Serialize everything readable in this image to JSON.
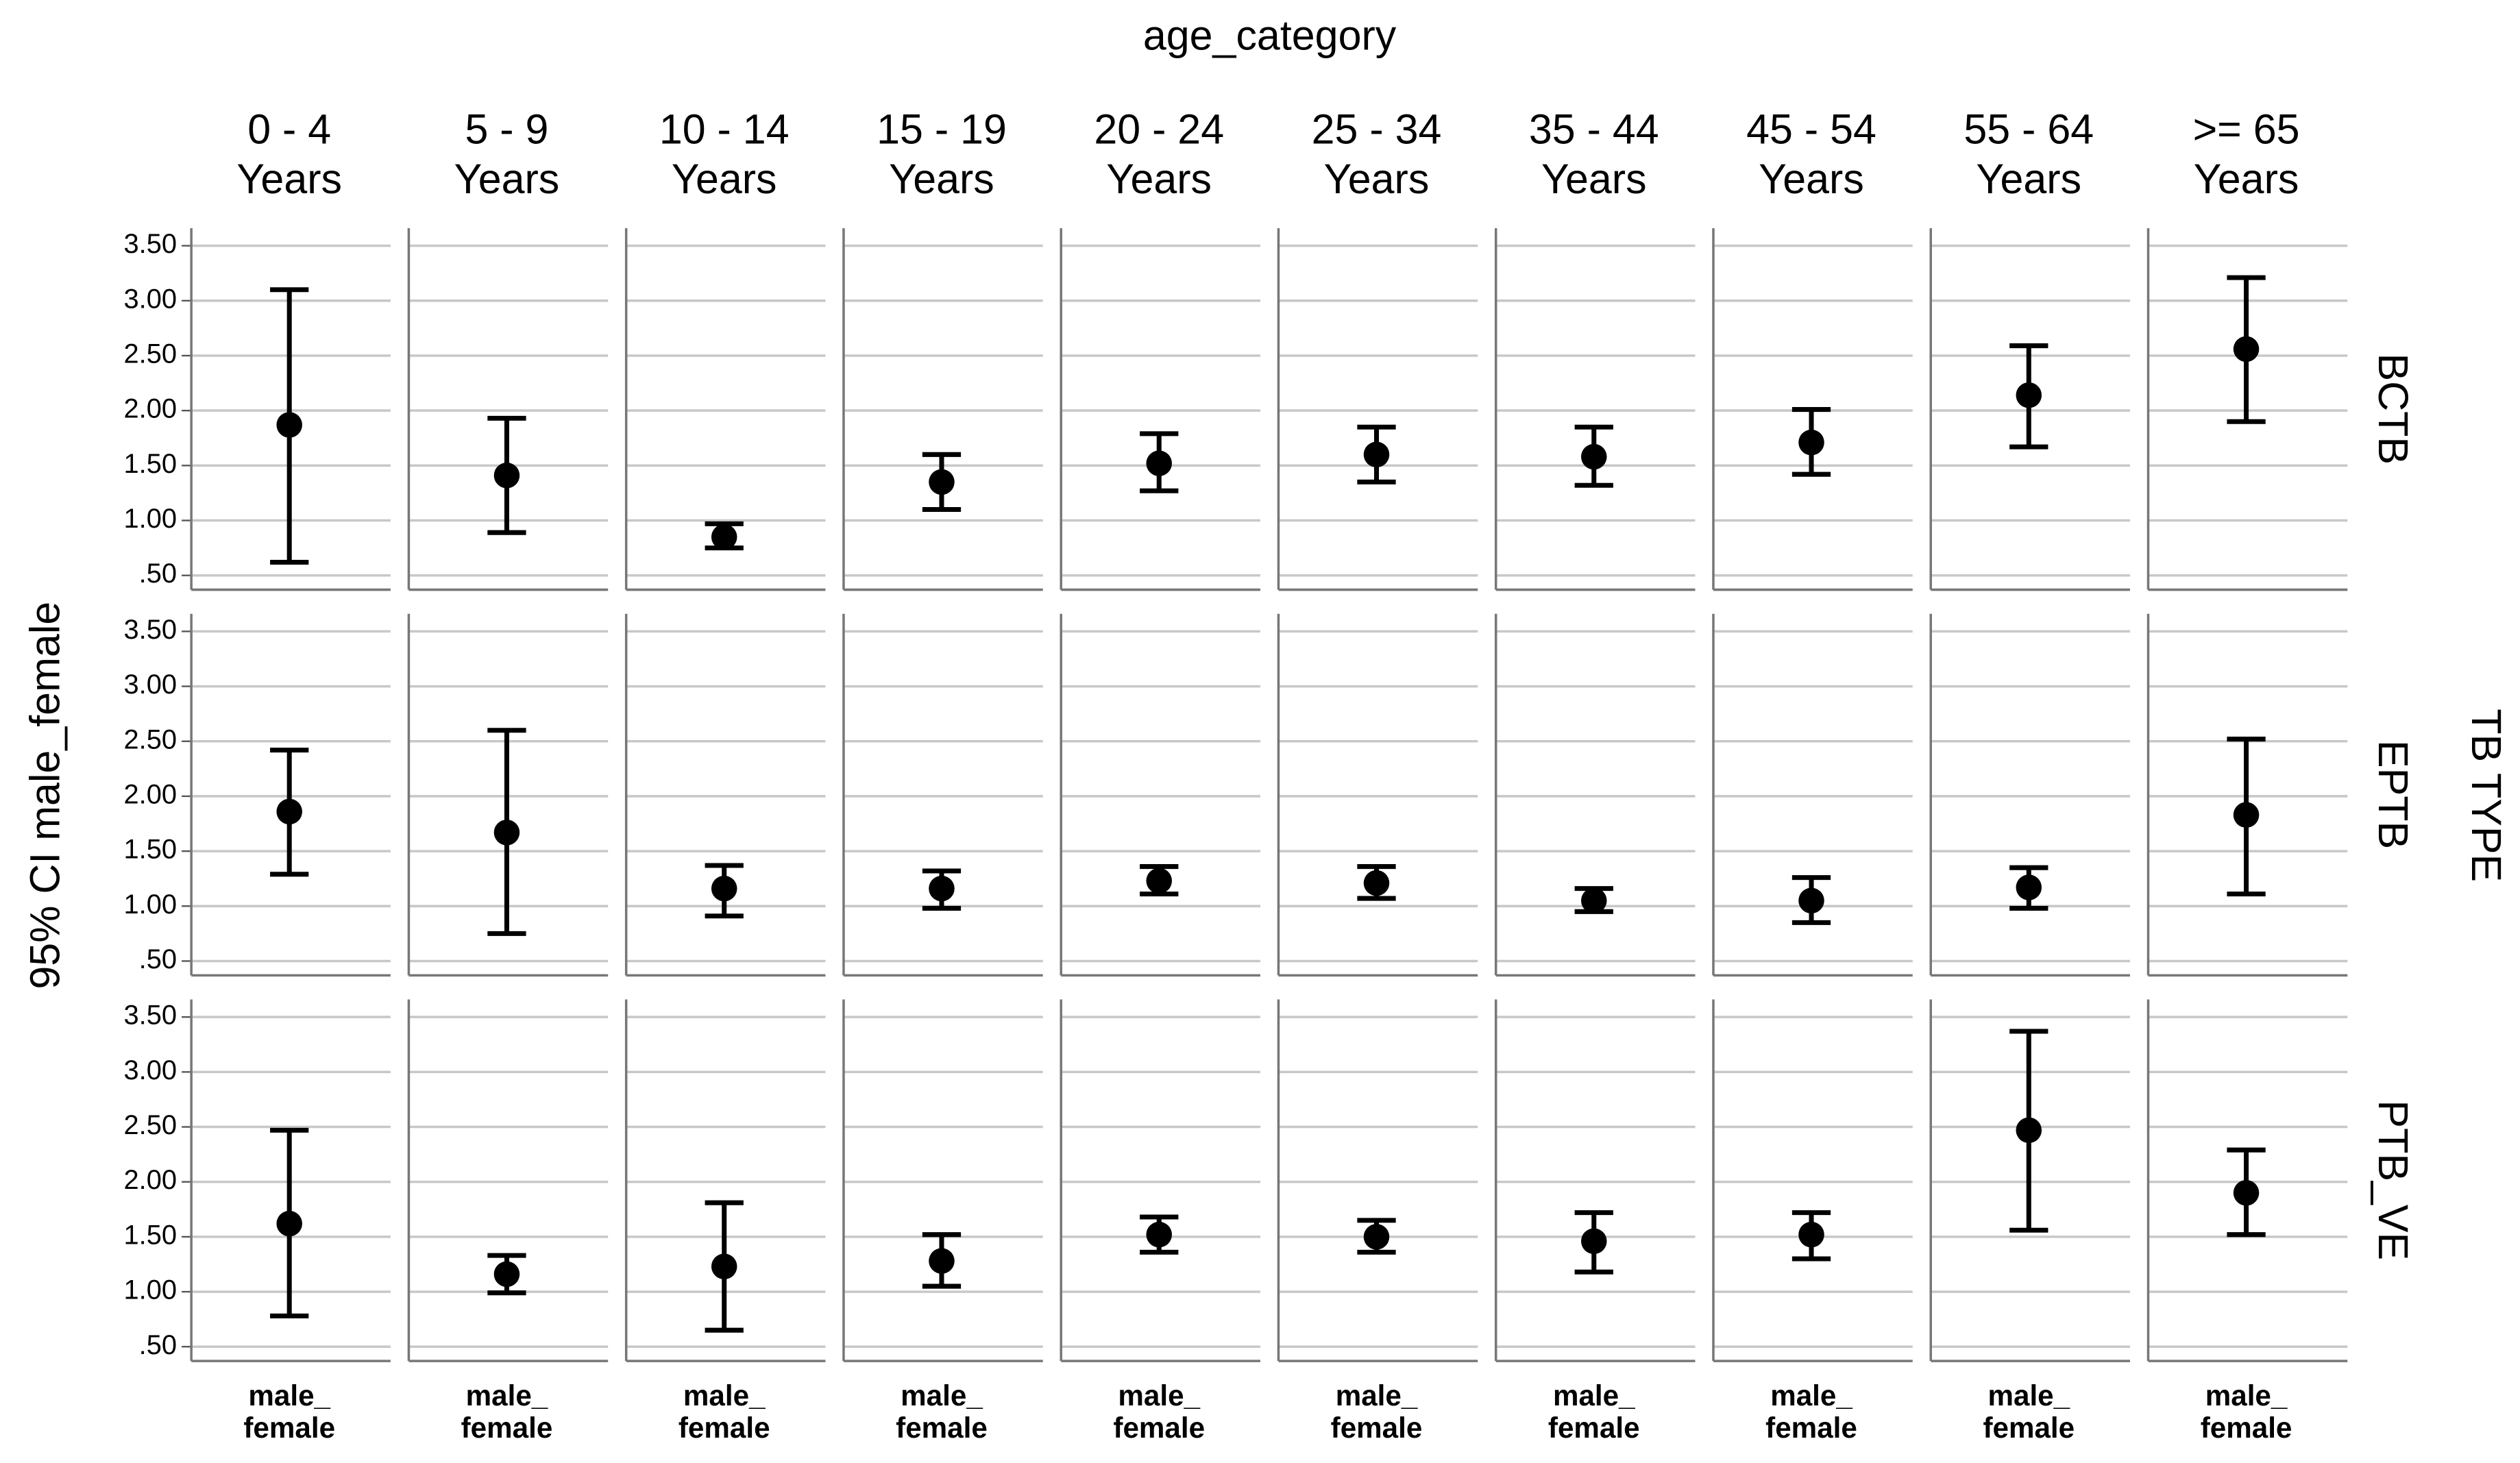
{
  "chart_data": {
    "type": "errorbar",
    "title": "age_category",
    "ylabel": "95% CI male_female",
    "row_title": "TB TYPE",
    "columns": [
      "0 - 4\nYears",
      "5 - 9\nYears",
      "10 - 14\nYears",
      "15 - 19\nYears",
      "20 - 24\nYears",
      "25 - 34\nYears",
      "35 - 44\nYears",
      "45 - 54\nYears",
      "55 - 64\nYears",
      ">= 65\nYears"
    ],
    "xlabel": "male_\nfemale",
    "ylim": [
      0.37,
      3.66
    ],
    "yticks": [
      {
        "value": 3.5,
        "label": "3.50"
      },
      {
        "value": 3.0,
        "label": "3.00"
      },
      {
        "value": 2.5,
        "label": "2.50"
      },
      {
        "value": 2.0,
        "label": "2.00"
      },
      {
        "value": 1.5,
        "label": "1.50"
      },
      {
        "value": 1.0,
        "label": "1.00"
      },
      {
        "value": 0.5,
        "label": ".50"
      }
    ],
    "grid": true,
    "color": "#000000",
    "series": [
      {
        "name": "BCTB",
        "values": [
          1.87,
          1.41,
          0.85,
          1.35,
          1.52,
          1.6,
          1.58,
          1.71,
          2.14,
          2.56
        ],
        "upper": [
          3.1,
          1.93,
          0.97,
          1.6,
          1.79,
          1.85,
          1.85,
          2.01,
          2.59,
          3.21
        ],
        "lower": [
          0.62,
          0.89,
          0.75,
          1.1,
          1.27,
          1.35,
          1.32,
          1.42,
          1.67,
          1.9
        ]
      },
      {
        "name": "EPTB",
        "values": [
          1.86,
          1.67,
          1.16,
          1.16,
          1.23,
          1.21,
          1.05,
          1.05,
          1.17,
          1.83
        ],
        "upper": [
          2.42,
          2.6,
          1.37,
          1.32,
          1.36,
          1.36,
          1.16,
          1.26,
          1.35,
          2.52
        ],
        "lower": [
          1.29,
          0.75,
          0.91,
          0.98,
          1.11,
          1.07,
          0.95,
          0.85,
          0.98,
          1.11
        ]
      },
      {
        "name": "PTB_VE",
        "values": [
          1.62,
          1.16,
          1.23,
          1.28,
          1.52,
          1.5,
          1.46,
          1.52,
          2.47,
          1.9
        ],
        "upper": [
          2.47,
          1.33,
          1.81,
          1.52,
          1.68,
          1.65,
          1.72,
          1.72,
          3.37,
          2.29
        ],
        "lower": [
          0.78,
          0.99,
          0.65,
          1.05,
          1.36,
          1.36,
          1.18,
          1.3,
          1.56,
          1.52
        ]
      }
    ]
  }
}
